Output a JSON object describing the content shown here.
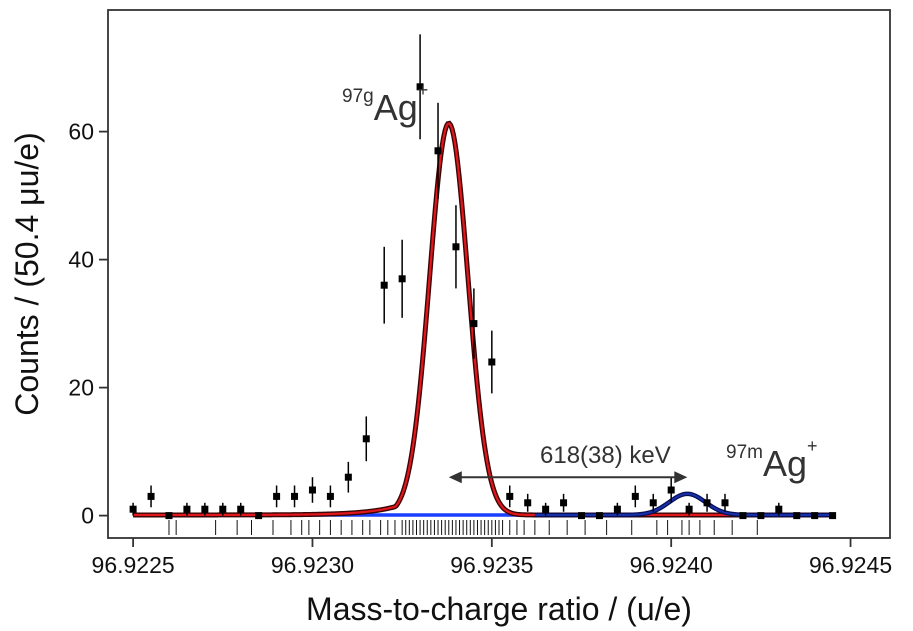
{
  "chart_data": {
    "type": "scatter",
    "title": "",
    "xlabel": "Mass-to-charge ratio / (u/e)",
    "ylabel": "Counts / (50.4 μu/e)",
    "xlim": [
      96.92243,
      96.92461
    ],
    "ylim": [
      -3.5,
      79
    ],
    "xticks": [
      96.9225,
      96.923,
      96.9235,
      96.924,
      96.9245
    ],
    "xtick_labels": [
      "96.9225",
      "96.9230",
      "96.9235",
      "96.9240",
      "96.9245"
    ],
    "yticks": [
      0,
      20,
      40,
      60
    ],
    "ytick_labels": [
      "0",
      "20",
      "40",
      "60"
    ],
    "grid": false,
    "legend": "none",
    "series": [
      {
        "kind": "points_with_errorbars",
        "color": "#000000",
        "x": [
          96.9225,
          96.92255,
          96.9226,
          96.92265,
          96.9227,
          96.92275,
          96.9228,
          96.92285,
          96.9229,
          96.92295,
          96.923,
          96.92305,
          96.9231,
          96.92315,
          96.9232,
          96.92325,
          96.9233,
          96.92335,
          96.9234,
          96.92345,
          96.9235,
          96.92355,
          96.9236,
          96.92365,
          96.9237,
          96.92375,
          96.9238,
          96.92385,
          96.9239,
          96.92395,
          96.924,
          96.92405,
          96.9241,
          96.92415,
          96.9242,
          96.92425,
          96.9243,
          96.92435,
          96.9244,
          96.92445
        ],
        "y": [
          1,
          3,
          0,
          1,
          1,
          1,
          1,
          0,
          3,
          3,
          4,
          3,
          6,
          12,
          36,
          37,
          67,
          57,
          42,
          30,
          24,
          3,
          2,
          1,
          2,
          0,
          0,
          1,
          3,
          2,
          4,
          1,
          2,
          2,
          0,
          0,
          1,
          0,
          0,
          0
        ],
        "err": [
          1,
          1.7,
          0,
          1,
          1,
          1,
          1,
          0,
          1.7,
          1.7,
          2,
          1.7,
          2.4,
          3.5,
          6,
          6.1,
          8.2,
          7.5,
          6.5,
          5.5,
          4.9,
          1.7,
          1.4,
          1,
          1.4,
          0,
          0,
          1,
          1.7,
          1.4,
          2,
          1,
          1.4,
          1.4,
          0,
          0,
          1,
          0,
          0,
          0
        ]
      },
      {
        "kind": "fit_curve",
        "name": "97gAg+ fit",
        "color": "#e3161c",
        "outline": "#3a0606",
        "center": 96.92338,
        "sigma": 5.35e-05,
        "amplitude": 61.2,
        "tail_scale": 8.5e-05,
        "x_range": [
          96.9225,
          96.92445
        ]
      },
      {
        "kind": "fit_curve",
        "name": "97mAg+ fit",
        "color": "#1530a8",
        "outline": "#0a0f55",
        "center": 96.924045,
        "sigma": 5.05e-05,
        "amplitude": 3.3,
        "x_range": [
          96.92362,
          96.92445
        ]
      },
      {
        "kind": "baseline",
        "color": "#1a3fff",
        "y": 0.1,
        "x_range": [
          96.9225,
          96.92445
        ]
      }
    ],
    "rug_x": [
      96.9226,
      96.92262,
      96.92273,
      96.92279,
      96.92283,
      96.92289,
      96.92294,
      96.92297,
      96.92299,
      96.92302,
      96.92305,
      96.92308,
      96.92311,
      96.92314,
      96.92316,
      96.92319,
      96.92321,
      96.92323,
      96.92325,
      96.92326,
      96.92327,
      96.92328,
      96.92329,
      96.9233,
      96.92331,
      96.92332,
      96.92333,
      96.92334,
      96.92335,
      96.92336,
      96.92337,
      96.92338,
      96.92339,
      96.9234,
      96.92341,
      96.92342,
      96.92343,
      96.92344,
      96.92345,
      96.92346,
      96.92347,
      96.92348,
      96.92349,
      96.9235,
      96.92351,
      96.92352,
      96.92353,
      96.92355,
      96.92357,
      96.92359,
      96.92362,
      96.92366,
      96.92371,
      96.92376,
      96.92382,
      96.92389,
      96.92396,
      96.92399,
      96.92403,
      96.92405,
      96.92408,
      96.92412,
      96.92417,
      96.92424
    ],
    "annotations": [
      {
        "id": "ground",
        "sup": "97g",
        "main": "Ag",
        "sup2": "+"
      },
      {
        "id": "isomer",
        "sup": "97m",
        "main": "Ag",
        "sup2": "+"
      },
      {
        "id": "separation",
        "text": "618(38) keV",
        "x_start": 96.92338,
        "x_end": 96.924045,
        "y": 6
      }
    ]
  }
}
